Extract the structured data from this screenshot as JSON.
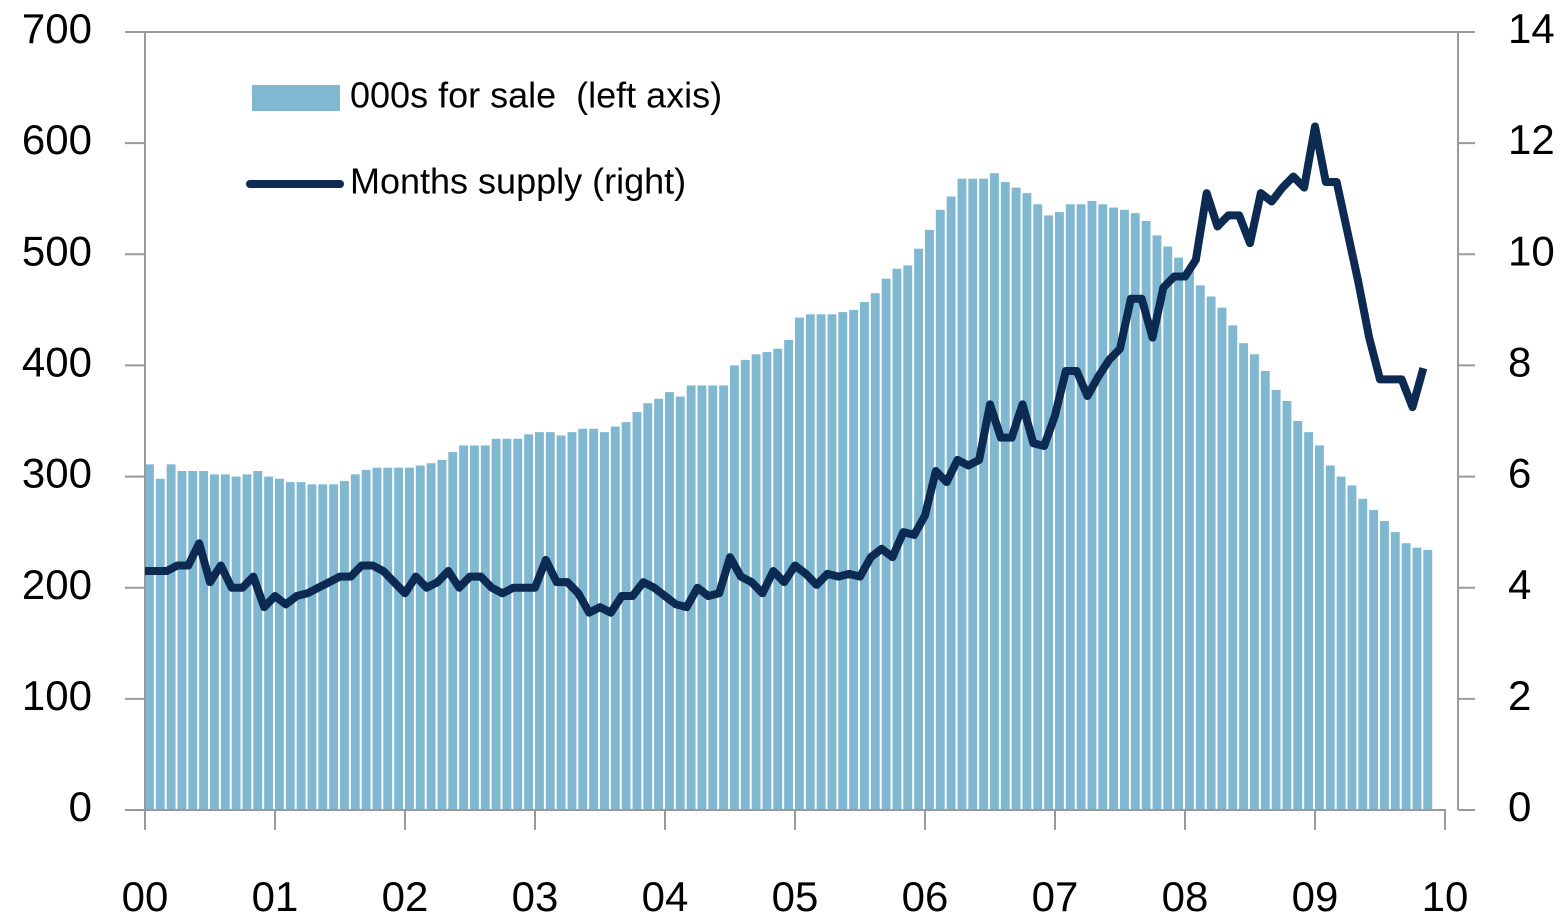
{
  "chart_data": {
    "type": "bar-line",
    "x": [
      0,
      1,
      2,
      3,
      4,
      5,
      6,
      7,
      8,
      9,
      10,
      11,
      12,
      13,
      14,
      15,
      16,
      17,
      18,
      19,
      20,
      21,
      22,
      23,
      24,
      25,
      26,
      27,
      28,
      29,
      30,
      31,
      32,
      33,
      34,
      35,
      36,
      37,
      38,
      39,
      40,
      41,
      42,
      43,
      44,
      45,
      46,
      47,
      48,
      49,
      50,
      51,
      52,
      53,
      54,
      55,
      56,
      57,
      58,
      59,
      60,
      61,
      62,
      63,
      64,
      65,
      66,
      67,
      68,
      69,
      70,
      71,
      72,
      73,
      74,
      75,
      76,
      77,
      78,
      79,
      80,
      81,
      82,
      83,
      84,
      85,
      86,
      87,
      88,
      89,
      90,
      91,
      92,
      93,
      94,
      95,
      96,
      97,
      98,
      99,
      100,
      101,
      102,
      103,
      104,
      105,
      106,
      107,
      108,
      109,
      110,
      111,
      112,
      113,
      114,
      115,
      116,
      117,
      118
    ],
    "series": [
      {
        "name": "000s for sale  (left axis)",
        "kind": "bar",
        "color": "#7fb8d0",
        "values": [
          311,
          298,
          311,
          305,
          305,
          305,
          302,
          302,
          300,
          302,
          305,
          300,
          298,
          295,
          295,
          293,
          293,
          293,
          296,
          302,
          306,
          308,
          308,
          308,
          308,
          310,
          312,
          315,
          322,
          328,
          328,
          328,
          334,
          334,
          334,
          338,
          340,
          340,
          337,
          340,
          343,
          343,
          340,
          345,
          349,
          358,
          366,
          370,
          376,
          372,
          382,
          382,
          382,
          382,
          400,
          405,
          410,
          412,
          415,
          423,
          443,
          446,
          446,
          446,
          448,
          450,
          457,
          465,
          478,
          487,
          490,
          505,
          522,
          540,
          552,
          568,
          568,
          568,
          573,
          565,
          560,
          555,
          545,
          535,
          538,
          545,
          545,
          548,
          545,
          542,
          540,
          537,
          530,
          517,
          507,
          497,
          485,
          472,
          462,
          452,
          436,
          420,
          410,
          395,
          378,
          368,
          350,
          340,
          328,
          310,
          300,
          292,
          280,
          270,
          260,
          250,
          240,
          236,
          234
        ]
      },
      {
        "name": "Months supply (right)",
        "kind": "line",
        "axis": "y2",
        "color": "#0c2a52",
        "values": [
          4.3,
          4.3,
          4.3,
          4.4,
          4.4,
          4.8,
          4.1,
          4.4,
          4.0,
          4.0,
          4.2,
          3.65,
          3.85,
          3.7,
          3.85,
          3.9,
          4.0,
          4.1,
          4.2,
          4.2,
          4.4,
          4.4,
          4.3,
          4.1,
          3.9,
          4.2,
          4.0,
          4.1,
          4.3,
          4.0,
          4.2,
          4.2,
          4.0,
          3.9,
          4.0,
          4.0,
          4.0,
          4.5,
          4.1,
          4.1,
          3.9,
          3.55,
          3.65,
          3.55,
          3.85,
          3.85,
          4.1,
          4.0,
          3.85,
          3.7,
          3.65,
          4.0,
          3.85,
          3.9,
          4.55,
          4.2,
          4.1,
          3.9,
          4.3,
          4.1,
          4.4,
          4.25,
          4.05,
          4.25,
          4.2,
          4.25,
          4.2,
          4.55,
          4.7,
          4.55,
          5.0,
          4.95,
          5.3,
          6.1,
          5.9,
          6.3,
          6.2,
          6.3,
          7.3,
          6.7,
          6.7,
          7.3,
          6.6,
          6.55,
          7.1,
          7.9,
          7.9,
          7.45,
          7.8,
          8.1,
          8.3,
          9.2,
          9.2,
          8.5,
          9.4,
          9.6,
          9.6,
          9.9,
          11.1,
          10.5,
          10.7,
          10.7,
          10.2,
          11.1,
          10.95,
          11.2,
          11.4,
          11.2,
          12.3,
          11.3,
          11.3,
          10.4,
          9.5,
          8.5,
          7.75,
          7.75,
          7.75,
          7.25,
          7.95
        ]
      }
    ],
    "xlim": [
      0,
      121.2
    ],
    "xticks": [
      {
        "value": 0,
        "label": "00"
      },
      {
        "value": 12,
        "label": "01"
      },
      {
        "value": 24,
        "label": "02"
      },
      {
        "value": 36,
        "label": "03"
      },
      {
        "value": 48,
        "label": "04"
      },
      {
        "value": 60,
        "label": "05"
      },
      {
        "value": 72,
        "label": "06"
      },
      {
        "value": 84,
        "label": "07"
      },
      {
        "value": 96,
        "label": "08"
      },
      {
        "value": 108,
        "label": "09"
      },
      {
        "value": 120,
        "label": "10"
      }
    ],
    "ylim": [
      0,
      700
    ],
    "yticks": [
      0,
      100,
      200,
      300,
      400,
      500,
      600,
      700
    ],
    "y2lim": [
      0,
      14
    ],
    "y2ticks": [
      0,
      2,
      4,
      6,
      8,
      10,
      12,
      14
    ]
  }
}
